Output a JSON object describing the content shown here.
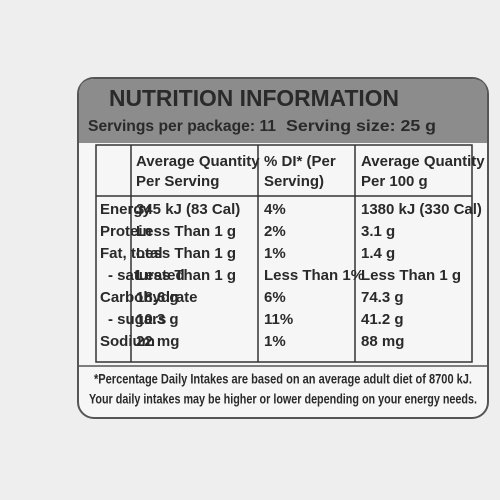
{
  "header": {
    "title": "NUTRITION INFORMATION",
    "servings": [
      "Servings per package: 11",
      "Serving size: 25 g"
    ]
  },
  "table": {
    "columns": [
      [
        "Average Quantity",
        "Per Serving"
      ],
      [
        "% DI* (Per",
        "Serving)"
      ],
      [
        "Average Quantity",
        "Per 100 g"
      ]
    ],
    "rows": [
      [
        "Energy",
        "345 kJ (83 Cal)",
        "4%",
        "1380 kJ (330 Cal)"
      ],
      [
        "Protein",
        "Less Than 1 g",
        "2%",
        "3.1 g"
      ],
      [
        "Fat, total",
        "Less Than 1 g",
        "1%",
        "1.4 g"
      ],
      [
        "- saturated",
        "Less Than 1 g",
        "Less Than 1%",
        "Less Than 1 g"
      ],
      [
        "Carbohydrate",
        "18.6 g",
        "6%",
        "74.3 g"
      ],
      [
        "- sugars",
        "10.3 g",
        "11%",
        "41.2 g"
      ],
      [
        "Sodium",
        "22 mg",
        "1%",
        "88 mg"
      ]
    ]
  },
  "footnote": [
    "*Percentage Daily Intakes are based on an average adult diet of 8700 kJ.",
    "Your daily intakes may be higher or lower depending on your energy needs."
  ]
}
